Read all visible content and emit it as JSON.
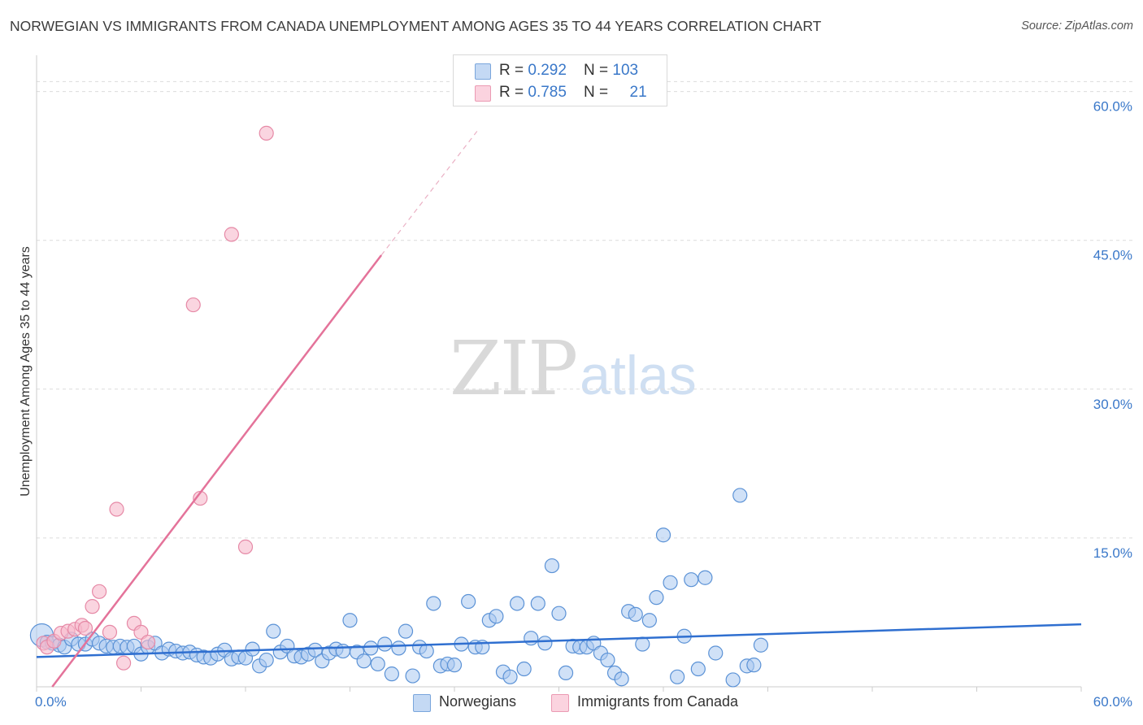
{
  "title": "NORWEGIAN VS IMMIGRANTS FROM CANADA UNEMPLOYMENT AMONG AGES 35 TO 44 YEARS CORRELATION CHART",
  "source": "Source: ZipAtlas.com",
  "watermark": {
    "zip": "ZIP",
    "atlas": "atlas"
  },
  "legend": {
    "rows": [
      {
        "r_label": "R = ",
        "r_value": "0.292",
        "n_label": "N = ",
        "n_value": "103",
        "color": "#a9c8f0"
      },
      {
        "r_label": "R = ",
        "r_value": "0.785",
        "n_label": "N = ",
        "n_value": "21",
        "color": "#f7b9cb"
      }
    ]
  },
  "bottom_legend": {
    "series1": "Norwegians",
    "series2": "Immigrants from Canada"
  },
  "chart_data": {
    "type": "scatter",
    "title": "NORWEGIAN VS IMMIGRANTS FROM CANADA UNEMPLOYMENT AMONG AGES 35 TO 44 YEARS CORRELATION CHART",
    "xlabel": "",
    "ylabel": "Unemployment Among Ages 35 to 44 years",
    "xlim": [
      0,
      60
    ],
    "ylim": [
      0,
      63
    ],
    "x_tick_labels": [
      "0.0%",
      "60.0%"
    ],
    "y_ticks": [
      15,
      30,
      45,
      60
    ],
    "y_tick_labels": [
      "15.0%",
      "30.0%",
      "45.0%",
      "60.0%"
    ],
    "grid": true,
    "series": [
      {
        "name": "Norwegians",
        "color": "#a9c8f0",
        "stroke": "#5b92d6",
        "trend": {
          "x0": 0,
          "y0": 3.0,
          "x1": 60,
          "y1": 6.3,
          "color": "#2f6fd0"
        },
        "points": [
          [
            0.3,
            5.2
          ],
          [
            0.6,
            4.5
          ],
          [
            0.9,
            4.4
          ],
          [
            1.3,
            4.2
          ],
          [
            1.6,
            4.0
          ],
          [
            2.0,
            4.8
          ],
          [
            2.4,
            4.3
          ],
          [
            2.8,
            4.3
          ],
          [
            3.2,
            4.8
          ],
          [
            3.6,
            4.4
          ],
          [
            4.0,
            4.1
          ],
          [
            4.4,
            4.0
          ],
          [
            4.8,
            4.1
          ],
          [
            5.2,
            4.0
          ],
          [
            5.6,
            4.1
          ],
          [
            6.0,
            3.3
          ],
          [
            6.4,
            4.0
          ],
          [
            6.8,
            4.4
          ],
          [
            7.2,
            3.4
          ],
          [
            7.6,
            3.8
          ],
          [
            8.0,
            3.6
          ],
          [
            8.4,
            3.4
          ],
          [
            8.8,
            3.5
          ],
          [
            9.2,
            3.2
          ],
          [
            9.6,
            3.0
          ],
          [
            10.0,
            2.9
          ],
          [
            10.4,
            3.3
          ],
          [
            10.8,
            3.7
          ],
          [
            11.2,
            2.8
          ],
          [
            11.6,
            3.0
          ],
          [
            12.0,
            2.9
          ],
          [
            12.4,
            3.8
          ],
          [
            12.8,
            2.1
          ],
          [
            13.2,
            2.7
          ],
          [
            13.6,
            5.6
          ],
          [
            14.0,
            3.5
          ],
          [
            14.4,
            4.1
          ],
          [
            14.8,
            3.1
          ],
          [
            15.2,
            3.0
          ],
          [
            15.6,
            3.3
          ],
          [
            16.0,
            3.7
          ],
          [
            16.4,
            2.6
          ],
          [
            16.8,
            3.4
          ],
          [
            17.2,
            3.8
          ],
          [
            17.6,
            3.6
          ],
          [
            18.0,
            6.7
          ],
          [
            18.4,
            3.5
          ],
          [
            18.8,
            2.6
          ],
          [
            19.2,
            3.9
          ],
          [
            19.6,
            2.3
          ],
          [
            20.0,
            4.3
          ],
          [
            20.4,
            1.3
          ],
          [
            20.8,
            3.9
          ],
          [
            21.2,
            5.6
          ],
          [
            21.6,
            1.1
          ],
          [
            22.0,
            4.0
          ],
          [
            22.4,
            3.6
          ],
          [
            22.8,
            8.4
          ],
          [
            23.2,
            2.1
          ],
          [
            23.6,
            2.3
          ],
          [
            24.0,
            2.2
          ],
          [
            24.4,
            4.3
          ],
          [
            24.8,
            8.6
          ],
          [
            25.2,
            4.0
          ],
          [
            25.6,
            4.0
          ],
          [
            26.0,
            6.7
          ],
          [
            26.4,
            7.1
          ],
          [
            26.8,
            1.5
          ],
          [
            27.2,
            1.0
          ],
          [
            27.6,
            8.4
          ],
          [
            28.0,
            1.8
          ],
          [
            28.4,
            4.9
          ],
          [
            28.8,
            8.4
          ],
          [
            29.2,
            4.4
          ],
          [
            29.6,
            12.2
          ],
          [
            30.0,
            7.4
          ],
          [
            30.4,
            1.4
          ],
          [
            30.8,
            4.1
          ],
          [
            31.2,
            4.0
          ],
          [
            31.6,
            4.0
          ],
          [
            32.0,
            4.4
          ],
          [
            32.4,
            3.4
          ],
          [
            32.8,
            2.7
          ],
          [
            33.2,
            1.4
          ],
          [
            33.6,
            0.8
          ],
          [
            34.0,
            7.6
          ],
          [
            34.4,
            7.3
          ],
          [
            34.8,
            4.3
          ],
          [
            35.2,
            6.7
          ],
          [
            35.6,
            9.0
          ],
          [
            36.0,
            15.3
          ],
          [
            36.4,
            10.5
          ],
          [
            36.8,
            1.0
          ],
          [
            37.2,
            5.1
          ],
          [
            37.6,
            10.8
          ],
          [
            38.0,
            1.8
          ],
          [
            38.4,
            11.0
          ],
          [
            39.0,
            3.4
          ],
          [
            40.0,
            0.7
          ],
          [
            40.4,
            19.3
          ],
          [
            40.8,
            2.1
          ],
          [
            41.2,
            2.2
          ],
          [
            41.6,
            4.2
          ]
        ]
      },
      {
        "name": "Immigrants from Canada",
        "color": "#f7b9cb",
        "stroke": "#e689a6",
        "trend": {
          "x0": 0.9,
          "y0": 0,
          "x1": 19.8,
          "y1": 43.5,
          "dash_to_x": 25.3,
          "dash_to_y": 56.0,
          "color": "#e4739a"
        },
        "points": [
          [
            0.4,
            4.4
          ],
          [
            0.6,
            4.0
          ],
          [
            1.0,
            4.6
          ],
          [
            1.4,
            5.4
          ],
          [
            1.8,
            5.6
          ],
          [
            2.2,
            5.8
          ],
          [
            2.6,
            6.2
          ],
          [
            2.8,
            5.9
          ],
          [
            3.2,
            8.1
          ],
          [
            3.6,
            9.6
          ],
          [
            4.2,
            5.5
          ],
          [
            4.6,
            17.9
          ],
          [
            5.0,
            2.4
          ],
          [
            5.6,
            6.4
          ],
          [
            6.0,
            5.5
          ],
          [
            6.4,
            4.5
          ],
          [
            9.0,
            38.5
          ],
          [
            9.4,
            19.0
          ],
          [
            11.2,
            45.6
          ],
          [
            12.0,
            14.1
          ],
          [
            13.2,
            55.8
          ]
        ]
      }
    ]
  }
}
